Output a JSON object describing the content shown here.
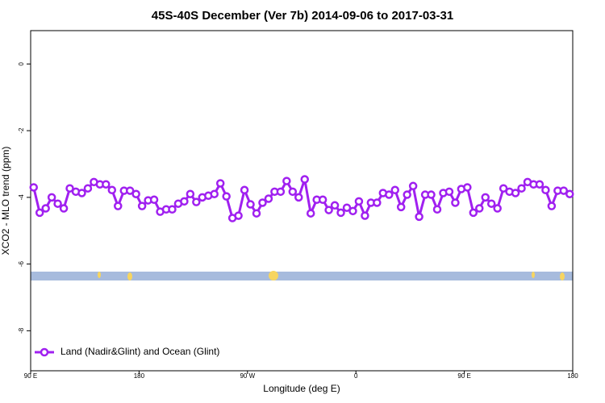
{
  "chart_data": {
    "type": "line",
    "title": "45S-40S December (Ver 7b)   2014-09-06 to 2017-03-31",
    "x_label": "Longitude (deg E)",
    "y_label": "XCO2 - MLO trend (ppm)",
    "x": [
      92.5,
      97.5,
      102.5,
      107.5,
      112.5,
      117.5,
      122.5,
      127.5,
      132.5,
      137.5,
      142.5,
      147.5,
      152.5,
      157.5,
      162.5,
      167.5,
      172.5,
      177.5,
      182.5,
      187.5,
      192.5,
      197.5,
      202.5,
      207.5,
      212.5,
      217.5,
      222.5,
      227.5,
      232.5,
      237.5,
      242.5,
      247.5,
      252.5,
      257.5,
      262.5,
      267.5,
      272.5,
      277.5,
      282.5,
      287.5,
      292.5,
      297.5,
      302.5,
      307.5,
      312.5,
      317.5,
      322.5,
      327.5,
      332.5,
      337.5,
      342.5,
      347.5,
      352.5,
      357.5,
      362.5,
      367.5,
      372.5,
      377.5,
      382.5,
      387.5,
      392.5,
      397.5,
      402.5,
      407.5,
      412.5,
      417.5,
      422.5,
      427.5,
      432.5,
      437.5,
      442.5,
      447.5,
      452.5,
      457.5,
      462.5,
      467.5,
      472.5,
      477.5,
      482.5,
      487.5,
      492.5,
      497.5,
      502.5,
      507.5,
      512.5,
      517.5,
      522.5,
      527.5,
      532.5,
      537.5
    ],
    "series": [
      {
        "name": "Land (Nadir&Glint) and Ocean (Glint)",
        "color": "#a020f0",
        "values": [
          -3.7,
          -4.46,
          -4.33,
          -4.0,
          -4.19,
          -4.33,
          -3.73,
          -3.83,
          -3.87,
          -3.73,
          -3.54,
          -3.61,
          -3.61,
          -3.78,
          -4.26,
          -3.8,
          -3.8,
          -3.9,
          -4.26,
          -4.09,
          -4.07,
          -4.43,
          -4.36,
          -4.36,
          -4.19,
          -4.12,
          -3.9,
          -4.14,
          -4.0,
          -3.95,
          -3.9,
          -3.58,
          -3.97,
          -4.62,
          -4.55,
          -3.78,
          -4.21,
          -4.48,
          -4.16,
          -4.04,
          -3.83,
          -3.83,
          -3.51,
          -3.83,
          -4.0,
          -3.46,
          -4.48,
          -4.07,
          -4.07,
          -4.38,
          -4.24,
          -4.46,
          -4.31,
          -4.41,
          -4.12,
          -4.55,
          -4.16,
          -4.16,
          -3.87,
          -3.92,
          -3.78,
          -4.29,
          -3.92,
          -3.66,
          -4.58,
          -3.92,
          -3.92,
          -4.36,
          -3.87,
          -3.83,
          -4.16,
          -3.75,
          -3.7,
          -4.46,
          -4.33,
          -4.0,
          -4.19,
          -4.33,
          -3.73,
          -3.83,
          -3.87,
          -3.73,
          -3.54,
          -3.61,
          -3.61,
          -3.78,
          -4.26,
          -3.8,
          -3.8,
          -3.9
        ]
      }
    ],
    "xlim": [
      90,
      540
    ],
    "xticks": [
      {
        "value": 90,
        "label": "90 E"
      },
      180,
      {
        "value": 270,
        "label": "90 W"
      },
      {
        "value": 360,
        "label": "0"
      },
      {
        "value": 450,
        "label": "90 E"
      },
      {
        "value": 540,
        "label": "180"
      }
    ],
    "ylim": [
      -9.2,
      1
    ],
    "yticks": [
      0,
      -2,
      -4,
      -6,
      -8
    ],
    "legend": "bottom-left"
  }
}
